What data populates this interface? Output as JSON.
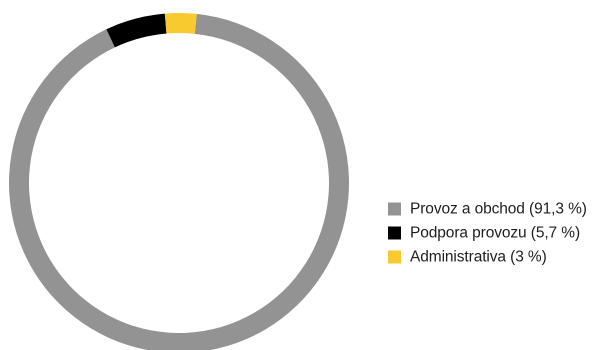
{
  "chart_data": {
    "type": "pie",
    "donut": true,
    "title": "",
    "legend_position": "right",
    "slices": [
      {
        "label": "Provoz a obchod (91,3 %)",
        "value": 91.3,
        "color": "#939393"
      },
      {
        "label": "Podpora provozu (5,7 %)",
        "value": 5.7,
        "color": "#000000"
      },
      {
        "label": "Administrativa (3 %)",
        "value": 3.0,
        "color": "#f9c930"
      }
    ]
  }
}
